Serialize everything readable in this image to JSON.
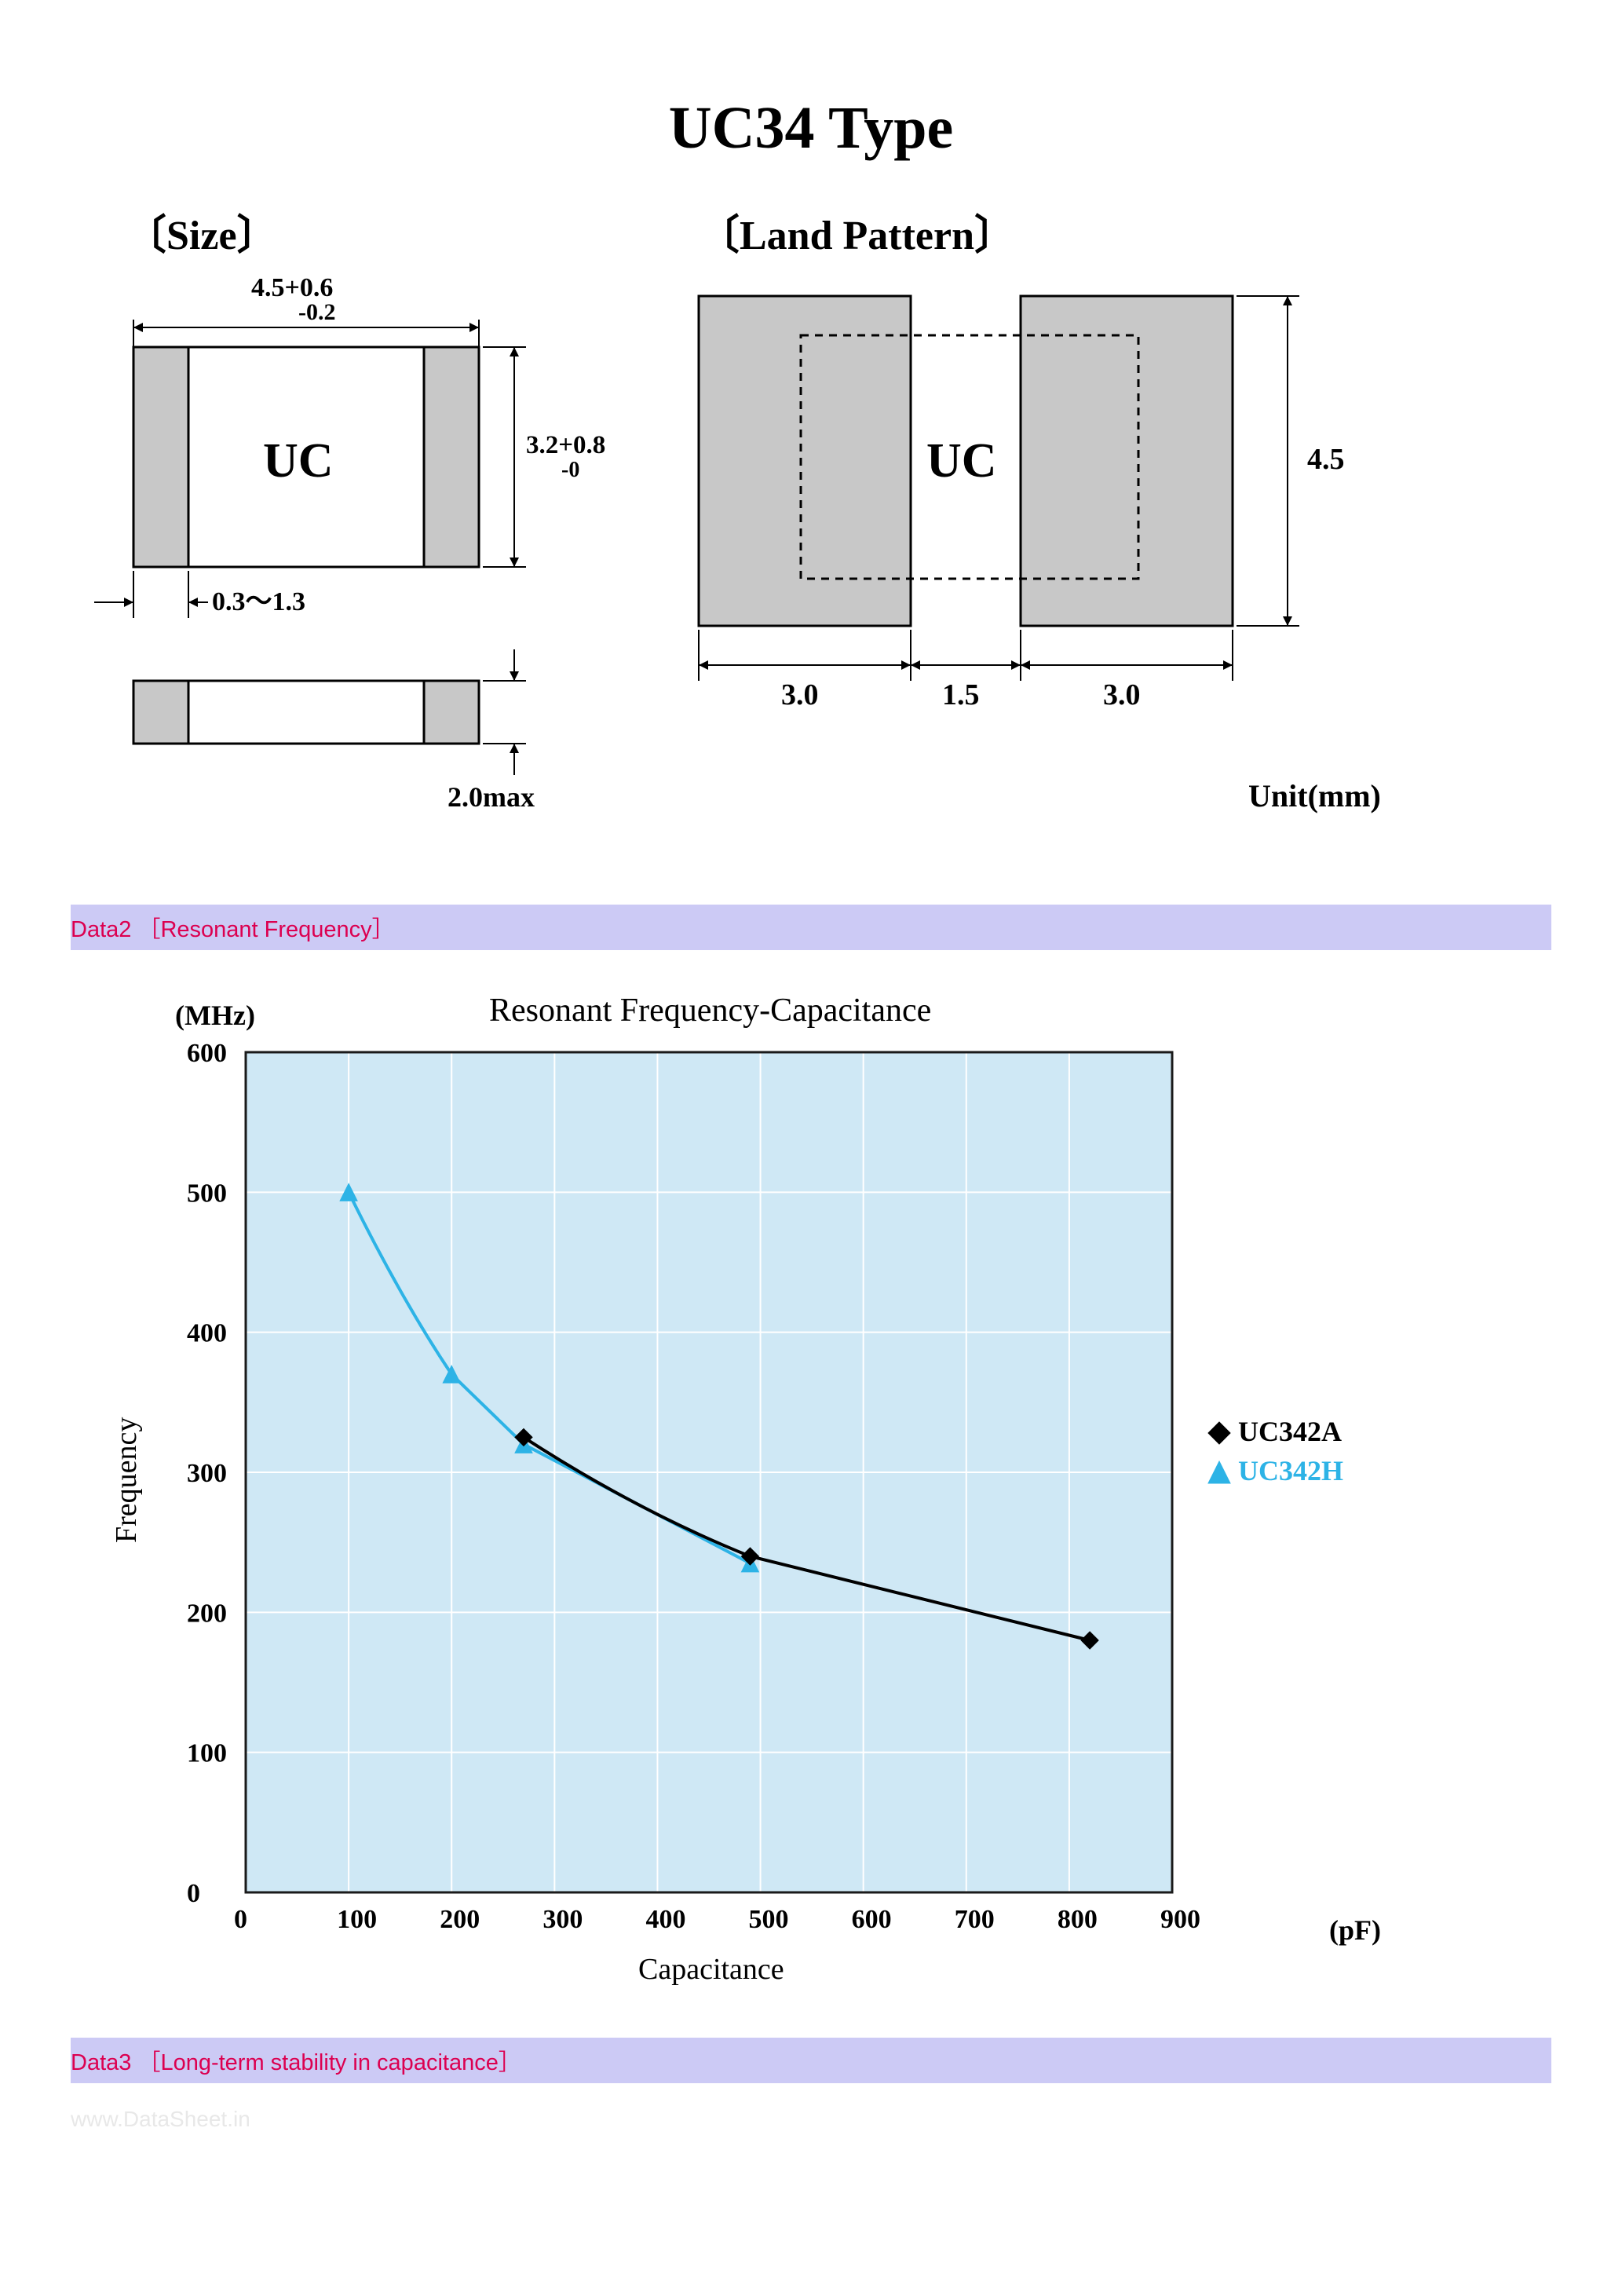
{
  "title": "UC34 Type",
  "size_section": {
    "heading": "〔Size〕",
    "width_dim": "4.5+0.6",
    "width_tol_low": "-0.2",
    "height_dim": "3.2+0.8",
    "height_tol_low": "-0",
    "electrode_range": "0.3～1.3",
    "thickness": "2.0max",
    "body_label": "UC"
  },
  "land_section": {
    "heading": "〔Land Pattern〕",
    "body_label": "UC",
    "pad_w": "3.0",
    "gap_w": "1.5",
    "pad_h": "4.5",
    "unit": "Unit(mm)"
  },
  "data2_bar": "Data2 ［Resonant Frequency］",
  "data3_bar": "Data3 ［Long-term stability in capacitance］",
  "chart": {
    "title": "Resonant Frequency-Capacitance",
    "y_unit": "(MHz)",
    "x_unit": "(pF)",
    "y_label": "Frequency",
    "x_label": "Capacitance",
    "xlim": [
      0,
      900
    ],
    "ylim": [
      0,
      600
    ],
    "xtick_step": 100,
    "ytick_step": 100,
    "xticks": [
      0,
      100,
      200,
      300,
      400,
      500,
      600,
      700,
      800,
      900
    ],
    "yticks": [
      0,
      100,
      200,
      300,
      400,
      500,
      600
    ],
    "plot_bg": "#cfe8f5",
    "border_color": "#1a1a1a",
    "grid_color": "#ffffff",
    "series": [
      {
        "name": "UC342A",
        "marker": "diamond",
        "color": "#000000",
        "line_width": 4,
        "points": [
          {
            "x": 270,
            "y": 325
          },
          {
            "x": 490,
            "y": 240
          },
          {
            "x": 820,
            "y": 180
          }
        ]
      },
      {
        "name": "UC342H",
        "marker": "triangle",
        "color": "#2db3e6",
        "line_width": 4,
        "points": [
          {
            "x": 100,
            "y": 500
          },
          {
            "x": 200,
            "y": 370
          },
          {
            "x": 270,
            "y": 320
          },
          {
            "x": 490,
            "y": 235
          }
        ]
      }
    ],
    "legend": [
      {
        "marker": "diamond",
        "color": "#000000",
        "label": "UC342A"
      },
      {
        "marker": "triangle",
        "color": "#2db3e6",
        "label": "UC342H"
      }
    ]
  },
  "watermark": "www.DataSheet.in"
}
